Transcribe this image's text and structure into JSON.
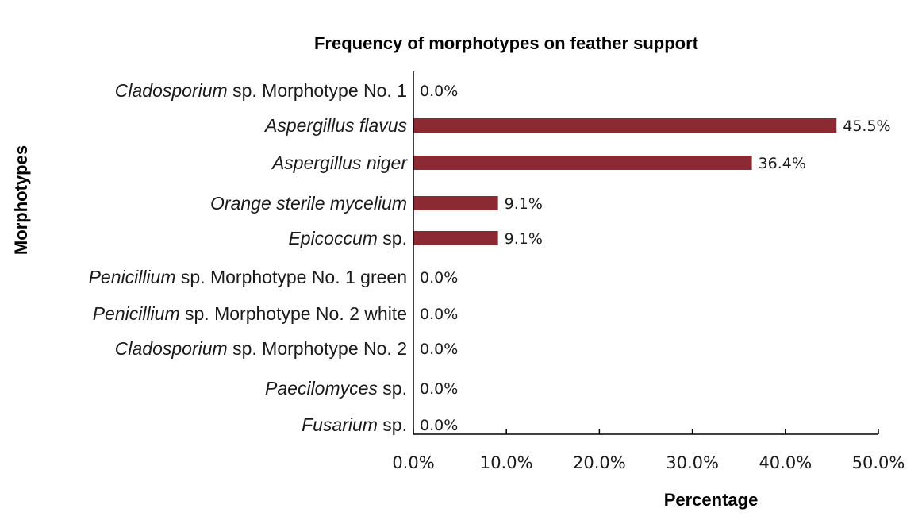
{
  "chart_data": {
    "type": "bar",
    "orientation": "horizontal",
    "title": "Frequency of morphotypes on feather support",
    "xlabel": "Percentage",
    "ylabel": "Morphotypes",
    "xlim": [
      0,
      50
    ],
    "xticks": [
      "0.0%",
      "10.0%",
      "20.0%",
      "30.0%",
      "40.0%",
      "50.0%"
    ],
    "grid": false,
    "legend": "none",
    "bar_color": "#8B2A33",
    "categories": [
      {
        "italic": "Cladosporium",
        "rest": " sp. Morphotype No. 1"
      },
      {
        "italic": "Aspergillus flavus",
        "rest": ""
      },
      {
        "italic": "Aspergillus niger",
        "rest": ""
      },
      {
        "italic": "Orange sterile mycelium",
        "rest": ""
      },
      {
        "italic": "Epicoccum",
        "rest": " sp."
      },
      {
        "italic": "Penicillium",
        "rest": " sp. Morphotype No. 1 green"
      },
      {
        "italic": "Penicillium",
        "rest": " sp. Morphotype No. 2 white"
      },
      {
        "italic": "Cladosporium",
        "rest": " sp. Morphotype No. 2"
      },
      {
        "italic": "Paecilomyces",
        "rest": " sp."
      },
      {
        "italic": "Fusarium",
        "rest": " sp."
      }
    ],
    "values": [
      0.0,
      45.5,
      36.4,
      9.1,
      9.1,
      0.0,
      0.0,
      0.0,
      0.0,
      0.0
    ],
    "data_labels": [
      "0.0%",
      "45.5%",
      "36.4%",
      "9.1%",
      "9.1%",
      "0.0%",
      "0.0%",
      "0.0%",
      "0.0%",
      "0.0%"
    ]
  }
}
